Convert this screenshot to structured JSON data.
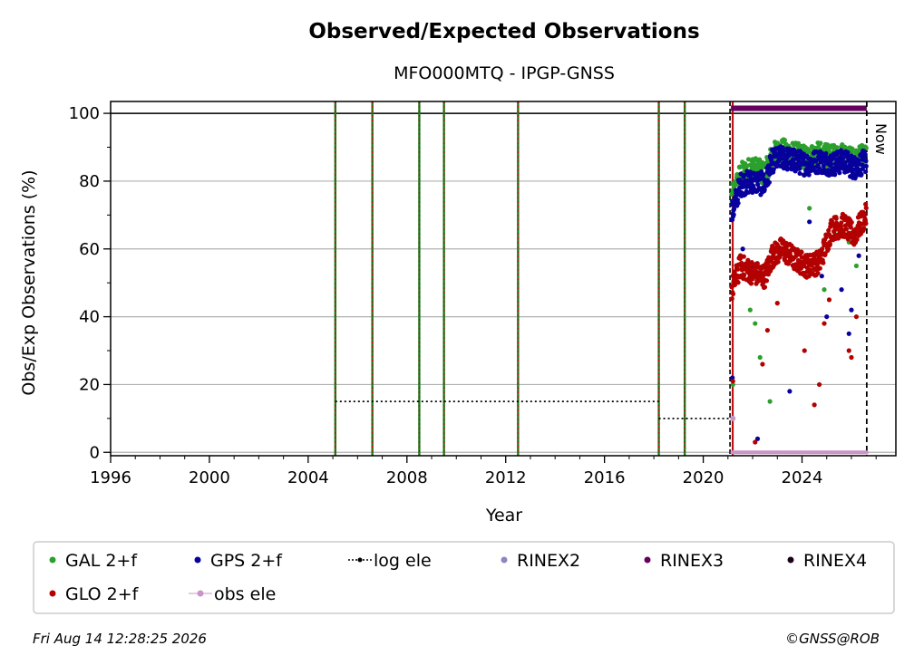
{
  "chart_data": {
    "type": "scatter",
    "title": "Observed/Expected Observations",
    "subtitle": "MFO000MTQ - IPGP-GNSS",
    "xlabel": "Year",
    "ylabel": "Obs/Exp Observations (%)",
    "xlim": [
      1996,
      2027.8
    ],
    "ylim": [
      -1,
      103.5
    ],
    "x_ticks": [
      1996,
      2000,
      2004,
      2008,
      2012,
      2016,
      2020,
      2024
    ],
    "y_ticks": [
      0,
      20,
      40,
      60,
      80,
      100
    ],
    "grid": "horizontal",
    "legend_position": "bottom",
    "now_label": "Now",
    "now_x": 2026.62,
    "data_start_x": 2021.12,
    "reference_line_y": 100,
    "vertical_event_lines_x": [
      2005.1,
      2006.6,
      2008.5,
      2009.5,
      2012.5,
      2018.2,
      2019.25
    ],
    "log_ele": {
      "name": "log ele",
      "color": "#000000",
      "segments": [
        {
          "x": [
            2005.1,
            2018.2
          ],
          "y": 15
        },
        {
          "x": [
            2018.2,
            2021.1
          ],
          "y": 10
        },
        {
          "x": [
            2021.1,
            2026.62
          ],
          "y": 0
        }
      ]
    },
    "obs_ele": {
      "name": "obs ele",
      "color": "#c994c7",
      "y": 0,
      "points": [
        {
          "x": 2021.2,
          "y": 10
        }
      ]
    },
    "rinex3_bar": {
      "name": "RINEX3",
      "color": "#67005f",
      "x": [
        2021.12,
        2026.62
      ],
      "y": 101.5
    },
    "series": [
      {
        "name": "GAL 2+f",
        "color": "#2ca02c",
        "trend": [
          [
            2021.15,
            75
          ],
          [
            2021.5,
            82
          ],
          [
            2022,
            84
          ],
          [
            2022.5,
            82
          ],
          [
            2022.8,
            88
          ],
          [
            2023.2,
            89
          ],
          [
            2023.7,
            88
          ],
          [
            2024.2,
            87
          ],
          [
            2024.7,
            88
          ],
          [
            2025.2,
            87
          ],
          [
            2025.7,
            88
          ],
          [
            2026.1,
            86
          ],
          [
            2026.6,
            88
          ]
        ],
        "outliers": [
          [
            2021.2,
            20
          ],
          [
            2021.5,
            58
          ],
          [
            2021.9,
            42
          ],
          [
            2022.1,
            38
          ],
          [
            2022.3,
            28
          ],
          [
            2022.7,
            15
          ],
          [
            2023.1,
            60
          ],
          [
            2024.3,
            72
          ],
          [
            2024.9,
            48
          ],
          [
            2025.3,
            65
          ],
          [
            2025.9,
            62
          ],
          [
            2026.2,
            55
          ]
        ]
      },
      {
        "name": "GPS 2+f",
        "color": "#08009c",
        "trend": [
          [
            2021.15,
            70
          ],
          [
            2021.5,
            79
          ],
          [
            2022,
            80
          ],
          [
            2022.5,
            79
          ],
          [
            2022.8,
            86
          ],
          [
            2023.2,
            87
          ],
          [
            2023.7,
            86
          ],
          [
            2024.2,
            85
          ],
          [
            2024.7,
            86
          ],
          [
            2025.2,
            85
          ],
          [
            2025.7,
            86
          ],
          [
            2026.1,
            84
          ],
          [
            2026.6,
            86
          ]
        ],
        "outliers": [
          [
            2021.18,
            22
          ],
          [
            2021.6,
            60
          ],
          [
            2022.0,
            55
          ],
          [
            2022.2,
            4
          ],
          [
            2023.5,
            18
          ],
          [
            2024.3,
            68
          ],
          [
            2024.8,
            52
          ],
          [
            2025.0,
            40
          ],
          [
            2025.6,
            48
          ],
          [
            2025.9,
            35
          ],
          [
            2026.0,
            42
          ],
          [
            2026.3,
            58
          ]
        ]
      },
      {
        "name": "GLO 2+f",
        "color": "#b30000",
        "trend": [
          [
            2021.15,
            48
          ],
          [
            2021.5,
            55
          ],
          [
            2022,
            53
          ],
          [
            2022.5,
            52
          ],
          [
            2022.8,
            58
          ],
          [
            2023.2,
            60
          ],
          [
            2023.7,
            57
          ],
          [
            2024.2,
            55
          ],
          [
            2024.7,
            56
          ],
          [
            2025.2,
            66
          ],
          [
            2025.7,
            67
          ],
          [
            2026.1,
            64
          ],
          [
            2026.6,
            70
          ]
        ],
        "outliers": [
          [
            2021.2,
            21
          ],
          [
            2022.1,
            3
          ],
          [
            2022.4,
            26
          ],
          [
            2022.6,
            36
          ],
          [
            2023.0,
            44
          ],
          [
            2024.1,
            30
          ],
          [
            2024.5,
            14
          ],
          [
            2024.7,
            20
          ],
          [
            2024.9,
            38
          ],
          [
            2025.1,
            45
          ],
          [
            2025.9,
            30
          ],
          [
            2026.0,
            28
          ],
          [
            2026.2,
            40
          ]
        ]
      }
    ],
    "legend": [
      {
        "name": "GAL 2+f",
        "color": "#2ca02c",
        "marker": "dot"
      },
      {
        "name": "GPS 2+f",
        "color": "#08009c",
        "marker": "dot"
      },
      {
        "name": "log ele",
        "color": "#000000",
        "marker": "dotted-line"
      },
      {
        "name": "RINEX2",
        "color": "#8c86c2",
        "marker": "dot"
      },
      {
        "name": "RINEX3",
        "color": "#67005f",
        "marker": "dot"
      },
      {
        "name": "RINEX4",
        "color": "#1d0016",
        "marker": "dot"
      },
      {
        "name": "GLO 2+f",
        "color": "#b30000",
        "marker": "dot"
      },
      {
        "name": "obs ele",
        "color": "#c994c7",
        "marker": "dot-line"
      }
    ]
  },
  "footer": {
    "timestamp": "Fri Aug 14 12:28:25 2026",
    "credit": "©GNSS@ROB"
  }
}
